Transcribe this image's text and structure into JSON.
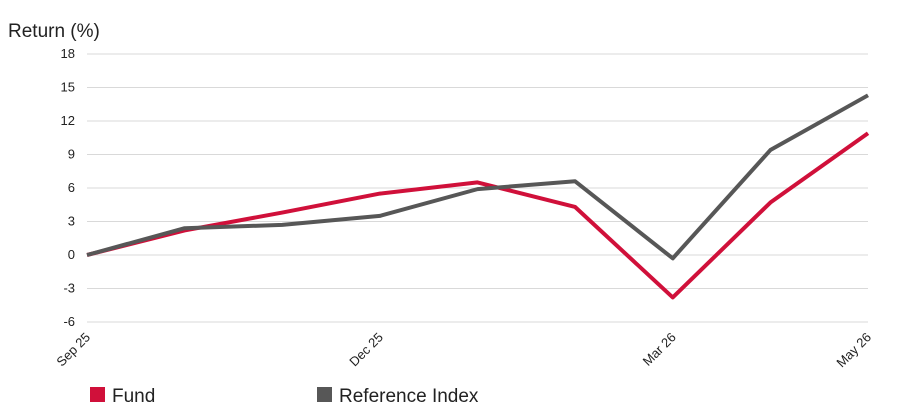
{
  "chart_data": {
    "type": "line",
    "y_label": "Return (%)",
    "categories": [
      "Sep 25",
      null,
      null,
      "Dec 25",
      null,
      null,
      "Mar 26",
      null,
      "May 26"
    ],
    "series": [
      {
        "name": "Fund",
        "color": "#d0103a",
        "values": [
          0,
          2.2,
          3.8,
          5.5,
          6.5,
          4.3,
          -3.8,
          4.7,
          10.9
        ]
      },
      {
        "name": "Reference Index",
        "color": "#575757",
        "values": [
          0,
          2.4,
          2.7,
          3.5,
          5.9,
          6.6,
          -0.3,
          9.4,
          14.3
        ]
      }
    ],
    "ylim": [
      -6,
      18
    ],
    "yticks": [
      -6,
      -3,
      0,
      3,
      6,
      9,
      12,
      15,
      18
    ],
    "grid": true,
    "legend": "bottom"
  }
}
